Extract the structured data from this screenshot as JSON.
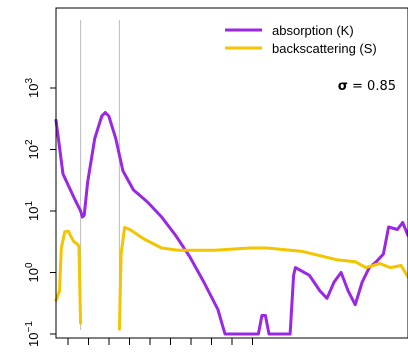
{
  "chart_data": {
    "type": "line",
    "title": "",
    "xlabel": "",
    "ylabel": "",
    "y_scale": "log10",
    "y_tick_labels": [
      {
        "base": "10",
        "exp": "3",
        "value": 1000
      },
      {
        "base": "10",
        "exp": "2",
        "value": 100
      },
      {
        "base": "10",
        "exp": "1",
        "value": 10
      },
      {
        "base": "10",
        "exp": "0",
        "value": 1
      },
      {
        "base": "10",
        "exp": "−1",
        "value": 0.1
      }
    ],
    "ylim": [
      0.07,
      100000.0
    ],
    "x_tick_count": 10,
    "legend_placement": "top-right",
    "series": [
      {
        "name": "absorption (K)",
        "color": "#9b27e6",
        "points": [
          [
            0.0,
            300
          ],
          [
            0.02,
            40
          ],
          [
            0.05,
            17
          ],
          [
            0.07,
            10
          ],
          [
            0.075,
            8
          ],
          [
            0.08,
            8.5
          ],
          [
            0.09,
            30
          ],
          [
            0.11,
            150
          ],
          [
            0.13,
            350
          ],
          [
            0.14,
            400
          ],
          [
            0.15,
            350
          ],
          [
            0.17,
            150
          ],
          [
            0.19,
            45
          ],
          [
            0.22,
            22
          ],
          [
            0.26,
            14
          ],
          [
            0.3,
            8
          ],
          [
            0.34,
            4
          ],
          [
            0.38,
            1.8
          ],
          [
            0.42,
            0.7
          ],
          [
            0.46,
            0.25
          ],
          [
            0.48,
            0.1
          ],
          [
            0.56,
            0.1
          ],
          [
            0.575,
            0.1
          ],
          [
            0.585,
            0.2
          ],
          [
            0.595,
            0.2
          ],
          [
            0.605,
            0.1
          ],
          [
            0.665,
            0.1
          ],
          [
            0.675,
            0.9
          ],
          [
            0.68,
            1.2
          ],
          [
            0.72,
            0.9
          ],
          [
            0.75,
            0.5
          ],
          [
            0.77,
            0.38
          ],
          [
            0.79,
            0.7
          ],
          [
            0.81,
            1.0
          ],
          [
            0.83,
            0.5
          ],
          [
            0.85,
            0.3
          ],
          [
            0.87,
            0.7
          ],
          [
            0.89,
            1.2
          ],
          [
            0.91,
            1.5
          ],
          [
            0.93,
            2.0
          ],
          [
            0.945,
            5.5
          ],
          [
            0.97,
            5.0
          ],
          [
            0.985,
            6.5
          ],
          [
            1.0,
            4.0
          ]
        ]
      },
      {
        "name": "backscattering (S)",
        "color": "#f2c500",
        "segments": [
          [
            [
              0.0,
              0.35
            ],
            [
              0.01,
              0.5
            ],
            [
              0.015,
              2.5
            ],
            [
              0.025,
              4.6
            ],
            [
              0.035,
              4.7
            ],
            [
              0.05,
              3.2
            ],
            [
              0.06,
              2.9
            ],
            [
              0.065,
              2.7
            ],
            [
              0.07,
              0.15
            ]
          ],
          [
            [
              0.18,
              0.12
            ],
            [
              0.185,
              2.0
            ],
            [
              0.195,
              5.4
            ],
            [
              0.21,
              5.0
            ],
            [
              0.25,
              3.5
            ],
            [
              0.3,
              2.5
            ],
            [
              0.35,
              2.3
            ],
            [
              0.45,
              2.3
            ],
            [
              0.55,
              2.5
            ],
            [
              0.6,
              2.5
            ],
            [
              0.7,
              2.2
            ],
            [
              0.8,
              1.6
            ],
            [
              0.85,
              1.5
            ],
            [
              0.88,
              1.2
            ],
            [
              0.92,
              1.4
            ],
            [
              0.95,
              1.2
            ],
            [
              0.98,
              1.3
            ],
            [
              1.0,
              0.85
            ]
          ]
        ]
      }
    ],
    "reference_lines_x": [
      0.07,
      0.18
    ],
    "annotation": {
      "symbol": "σ",
      "text": " = 0.85",
      "value": 0.85
    }
  }
}
